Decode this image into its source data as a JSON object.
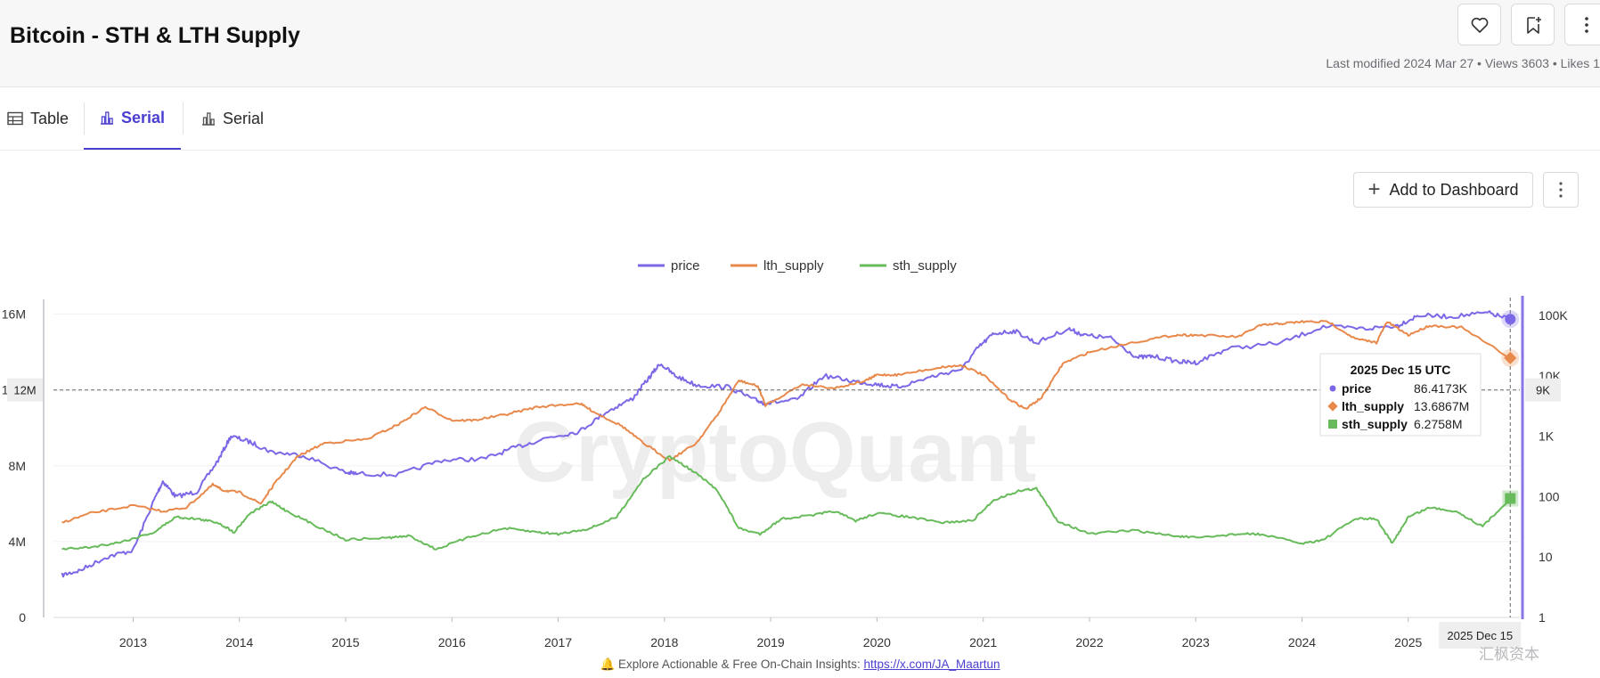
{
  "header": {
    "title": "Bitcoin - STH & LTH Supply",
    "meta": "Last modified 2024 Mar 27 • Views 3603 • Likes 1"
  },
  "tabs": [
    {
      "label": "Table",
      "icon": "table-icon"
    },
    {
      "label": "Serial",
      "icon": "bar-chart-icon"
    },
    {
      "label": "Serial",
      "icon": "bar-chart-icon"
    }
  ],
  "toolbar": {
    "add_dashboard": "Add to Dashboard"
  },
  "footer": {
    "prefix": "Explore Actionable & Free On-Chain Insights: ",
    "link": "https://x.com/JA_Maartun"
  },
  "watermark": "CryptoQuant",
  "corner_mark": "汇枫资本",
  "chart_data": {
    "type": "line",
    "legend": [
      "price",
      "lth_supply",
      "sth_supply"
    ],
    "legend_position": "top-center",
    "colors": {
      "price": "#7b68e6",
      "lth_supply": "#e8894b",
      "sth_supply": "#67bb5a"
    },
    "x_ticks": [
      "2013",
      "2014",
      "2015",
      "2016",
      "2017",
      "2018",
      "2019",
      "2020",
      "2021",
      "2022",
      "2023",
      "2024",
      "2025"
    ],
    "x_range": [
      2012.25,
      2026.05
    ],
    "left_axis": {
      "ticks": [
        "0",
        "4M",
        "8M",
        "12M",
        "16M"
      ],
      "range": [
        0,
        16500000
      ]
    },
    "right_axis": {
      "scale": "log",
      "ticks": [
        "1",
        "10",
        "100",
        "1K",
        "10K",
        "100K"
      ],
      "range": [
        1,
        150000
      ]
    },
    "series": [
      {
        "name": "price",
        "axis": "right",
        "x": [
          2012.33,
          2012.5,
          2012.75,
          2013.0,
          2013.2,
          2013.28,
          2013.4,
          2013.6,
          2013.8,
          2013.92,
          2014.1,
          2014.3,
          2014.6,
          2015.0,
          2015.1,
          2015.5,
          2015.9,
          2016.3,
          2016.6,
          2016.9,
          2017.2,
          2017.45,
          2017.7,
          2017.85,
          2017.96,
          2018.1,
          2018.3,
          2018.6,
          2018.85,
          2018.95,
          2019.25,
          2019.5,
          2019.8,
          2020.0,
          2020.2,
          2020.5,
          2020.8,
          2020.95,
          2021.1,
          2021.3,
          2021.5,
          2021.8,
          2021.95,
          2022.2,
          2022.45,
          2022.6,
          2022.85,
          2023.0,
          2023.3,
          2023.8,
          2024.2,
          2024.6,
          2024.9,
          2025.1,
          2025.4,
          2025.75,
          2025.96
        ],
        "y": [
          5,
          6,
          10,
          13,
          90,
          180,
          100,
          120,
          400,
          1000,
          800,
          550,
          480,
          250,
          240,
          230,
          400,
          420,
          650,
          950,
          1200,
          2500,
          4200,
          9000,
          16000,
          10000,
          7000,
          6500,
          4000,
          3500,
          4000,
          10000,
          8000,
          7200,
          6500,
          9500,
          13000,
          29000,
          50000,
          55000,
          35000,
          60000,
          47000,
          42000,
          20000,
          21000,
          17000,
          16500,
          28000,
          35000,
          65000,
          60000,
          68000,
          100000,
          95000,
          110000,
          86417
        ]
      },
      {
        "name": "lth_supply",
        "axis": "left",
        "x": [
          2012.33,
          2012.6,
          2013.0,
          2013.28,
          2013.5,
          2013.75,
          2013.85,
          2014.0,
          2014.2,
          2014.35,
          2014.55,
          2014.8,
          2015.2,
          2015.5,
          2015.75,
          2016.0,
          2016.2,
          2016.5,
          2016.8,
          2017.2,
          2017.35,
          2017.6,
          2017.8,
          2018.05,
          2018.3,
          2018.5,
          2018.7,
          2018.88,
          2018.95,
          2019.3,
          2019.6,
          2019.9,
          2020.0,
          2020.2,
          2020.6,
          2020.8,
          2021.0,
          2021.25,
          2021.4,
          2021.55,
          2021.75,
          2022.0,
          2022.4,
          2022.8,
          2023.0,
          2023.4,
          2023.6,
          2023.8,
          2024.0,
          2024.25,
          2024.5,
          2024.7,
          2024.8,
          2025.0,
          2025.2,
          2025.5,
          2025.96
        ],
        "y": [
          5000000,
          5500000,
          5900000,
          5600000,
          5800000,
          7000000,
          6700000,
          6600000,
          6000000,
          7200000,
          8500000,
          9200000,
          9400000,
          10200000,
          11100000,
          10400000,
          10400000,
          10700000,
          11100000,
          11300000,
          10800000,
          10100000,
          9200000,
          8300000,
          9200000,
          10700000,
          12500000,
          12200000,
          11200000,
          12300000,
          12100000,
          12500000,
          12800000,
          12800000,
          13200000,
          13300000,
          12800000,
          11500000,
          11000000,
          11600000,
          13400000,
          14000000,
          14500000,
          14900000,
          14900000,
          14800000,
          15400000,
          15500000,
          15600000,
          15600000,
          14700000,
          14500000,
          15600000,
          14900000,
          15400000,
          15300000,
          13686700
        ]
      },
      {
        "name": "sth_supply",
        "axis": "left",
        "x": [
          2012.33,
          2012.6,
          2012.9,
          2013.2,
          2013.4,
          2013.6,
          2013.8,
          2013.95,
          2014.1,
          2014.3,
          2014.45,
          2014.7,
          2015.0,
          2015.4,
          2015.6,
          2015.85,
          2016.2,
          2016.5,
          2016.8,
          2017.0,
          2017.3,
          2017.55,
          2017.8,
          2018.05,
          2018.3,
          2018.5,
          2018.7,
          2018.9,
          2019.1,
          2019.4,
          2019.6,
          2019.8,
          2020.0,
          2020.3,
          2020.6,
          2020.9,
          2021.1,
          2021.35,
          2021.5,
          2021.7,
          2022.0,
          2022.4,
          2022.8,
          2023.0,
          2023.4,
          2023.6,
          2024.0,
          2024.2,
          2024.5,
          2024.7,
          2024.85,
          2025.0,
          2025.2,
          2025.45,
          2025.7,
          2025.96
        ],
        "y": [
          3600000,
          3700000,
          4000000,
          4500000,
          5300000,
          5200000,
          5000000,
          4500000,
          5500000,
          6100000,
          5600000,
          4900000,
          4100000,
          4200000,
          4300000,
          3600000,
          4300000,
          4700000,
          4500000,
          4400000,
          4700000,
          5300000,
          7300000,
          8500000,
          7600000,
          6700000,
          4700000,
          4400000,
          5200000,
          5400000,
          5600000,
          5100000,
          5500000,
          5300000,
          5000000,
          5100000,
          6200000,
          6700000,
          6800000,
          5100000,
          4400000,
          4600000,
          4300000,
          4200000,
          4400000,
          4400000,
          3900000,
          4100000,
          5200000,
          5200000,
          3900000,
          5300000,
          5800000,
          5600000,
          4800000,
          6275800
        ]
      }
    ],
    "tooltip": {
      "date": "2025 Dec 15 UTC",
      "rows": [
        {
          "name": "price",
          "value": "86.4173K",
          "marker": "circle"
        },
        {
          "name": "lth_supply",
          "value": "13.6867M",
          "marker": "diamond"
        },
        {
          "name": "sth_supply",
          "value": "6.2758M",
          "marker": "square"
        }
      ]
    },
    "crosshair": {
      "x": 2025.96,
      "x_label": "2025 Dec 15",
      "y_left_label": "12M",
      "y_right_label": "9K"
    }
  }
}
